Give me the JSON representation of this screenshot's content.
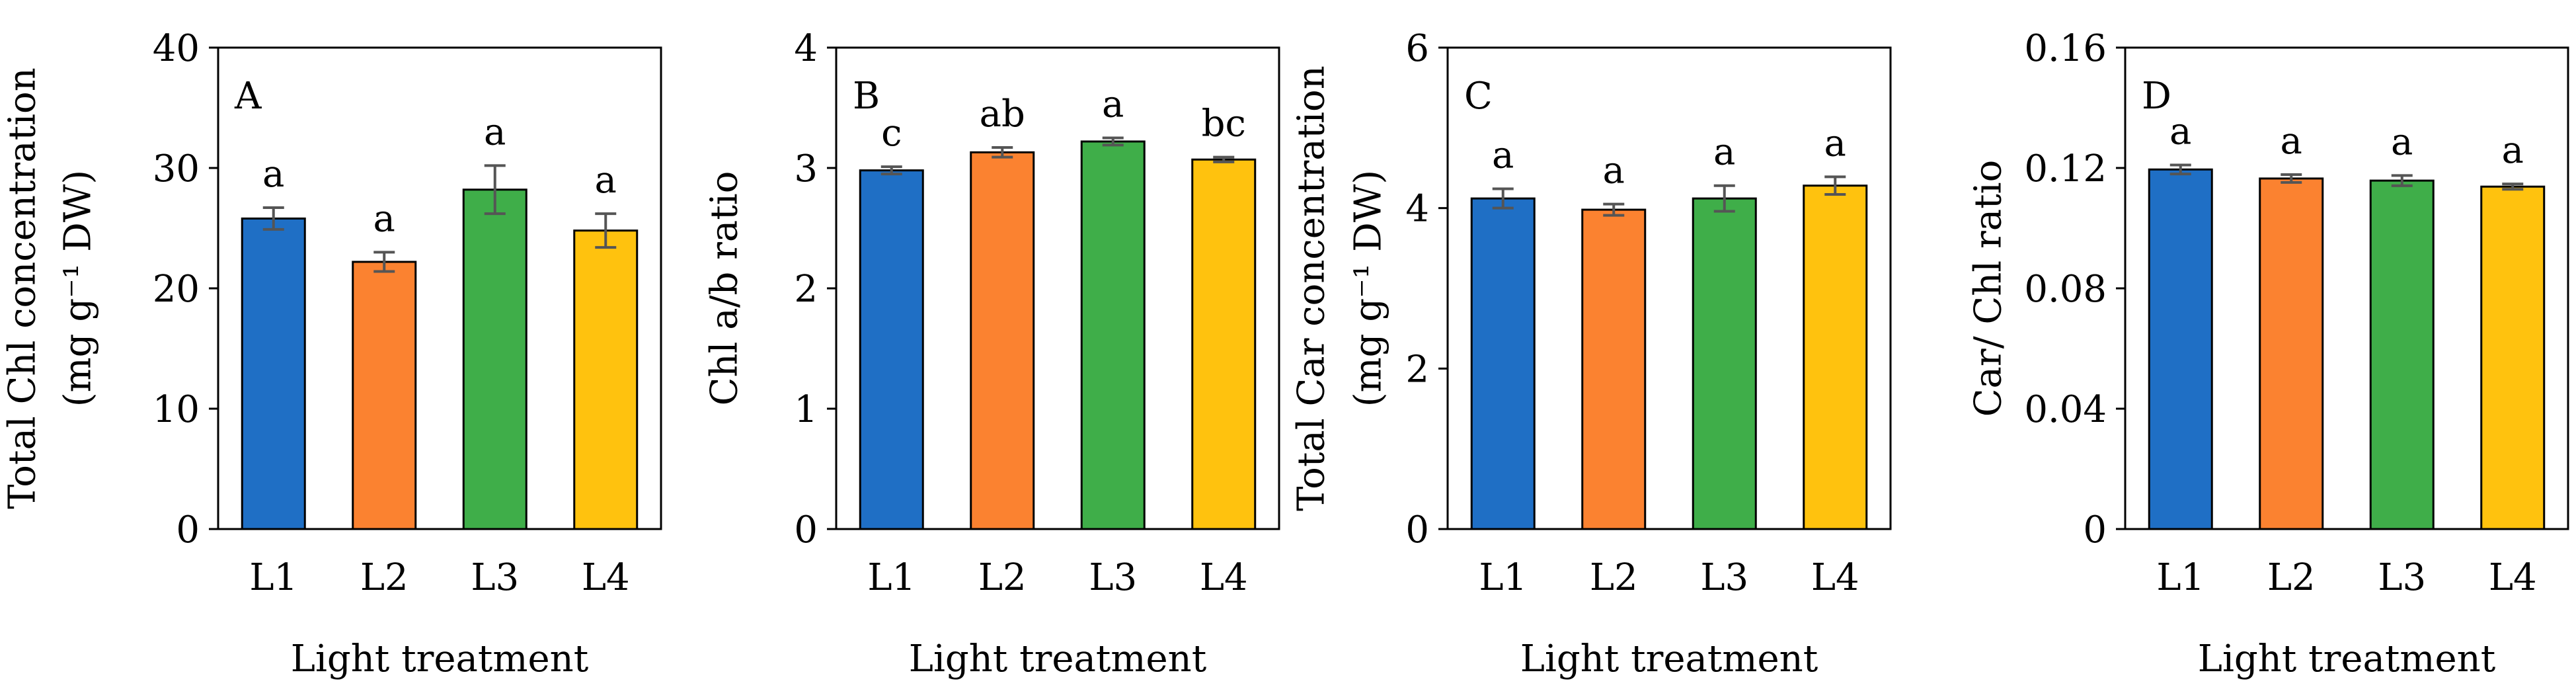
{
  "figure": {
    "colors": {
      "L1": "#1f6fc5",
      "L2": "#fb8230",
      "L3": "#3fae49",
      "L4": "#ffc20e",
      "error_bar": "#555555",
      "axis": "#000000"
    }
  },
  "chart_data": [
    {
      "type": "bar",
      "panel_label": "A",
      "categories": [
        "L1",
        "L2",
        "L3",
        "L4"
      ],
      "values": [
        25.8,
        22.2,
        28.2,
        24.8
      ],
      "errors": [
        0.9,
        0.8,
        2.0,
        1.4
      ],
      "significance": [
        "a",
        "a",
        "a",
        "a"
      ],
      "ylabel": [
        "Total Chl concentration",
        "(mg g⁻¹ DW)"
      ],
      "xlabel": "Light treatment",
      "ylim": [
        0,
        40
      ],
      "yticks": [
        0,
        10,
        20,
        30,
        40
      ],
      "ytick_labels": [
        "0",
        "10",
        "20",
        "30",
        "40"
      ],
      "grid": false
    },
    {
      "type": "bar",
      "panel_label": "B",
      "categories": [
        "L1",
        "L2",
        "L3",
        "L4"
      ],
      "values": [
        2.98,
        3.13,
        3.22,
        3.07
      ],
      "errors": [
        0.03,
        0.04,
        0.03,
        0.02
      ],
      "significance": [
        "c",
        "ab",
        "a",
        "bc"
      ],
      "ylabel": [
        "Chl a/b ratio"
      ],
      "xlabel": "Light treatment",
      "ylim": [
        0,
        4
      ],
      "yticks": [
        0,
        1,
        2,
        3,
        4
      ],
      "ytick_labels": [
        "0",
        "1",
        "2",
        "3",
        "4"
      ],
      "grid": false
    },
    {
      "type": "bar",
      "panel_label": "C",
      "categories": [
        "L1",
        "L2",
        "L3",
        "L4"
      ],
      "values": [
        4.12,
        3.98,
        4.12,
        4.28
      ],
      "errors": [
        0.12,
        0.07,
        0.16,
        0.11
      ],
      "significance": [
        "a",
        "a",
        "a",
        "a"
      ],
      "ylabel": [
        "Total Car concentration",
        "(mg g⁻¹ DW)"
      ],
      "xlabel": "Light treatment",
      "ylim": [
        0,
        6
      ],
      "yticks": [
        0,
        2,
        4,
        6
      ],
      "ytick_labels": [
        "0",
        "2",
        "4",
        "6"
      ],
      "grid": false
    },
    {
      "type": "bar",
      "panel_label": "D",
      "categories": [
        "L1",
        "L2",
        "L3",
        "L4"
      ],
      "values": [
        0.1195,
        0.1165,
        0.1158,
        0.1138
      ],
      "errors": [
        0.0015,
        0.0013,
        0.0017,
        0.0009
      ],
      "significance": [
        "a",
        "a",
        "a",
        "a"
      ],
      "ylabel": [
        "Car/ Chl ratio"
      ],
      "xlabel": "Light treatment",
      "ylim": [
        0,
        0.16
      ],
      "yticks": [
        0,
        0.04,
        0.08,
        0.12,
        0.16
      ],
      "ytick_labels": [
        "0",
        "0.04",
        "0.08",
        "0.12",
        "0.16"
      ],
      "grid": false
    }
  ]
}
